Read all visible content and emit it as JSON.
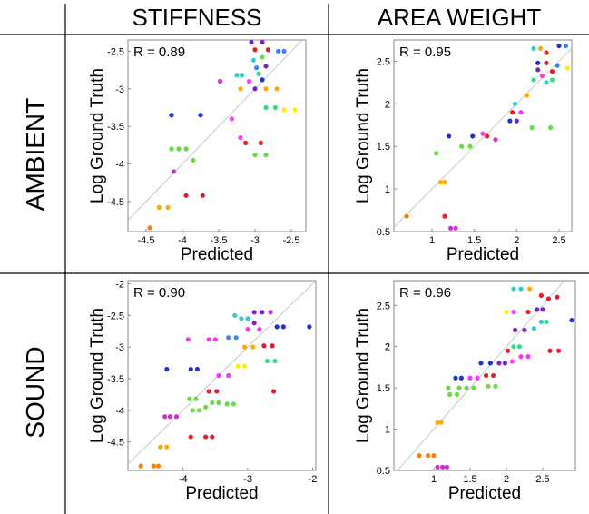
{
  "headers": {
    "columns": [
      "STIFFNESS",
      "AREA WEIGHT"
    ],
    "rows": [
      "AMBIENT",
      "SOUND"
    ]
  },
  "chart_data": [
    {
      "type": "scatter",
      "title": "",
      "row": "AMBIENT",
      "column": "STIFFNESS",
      "annotation": "R = 0.89",
      "xlabel": "Predicted",
      "ylabel": "Log Ground Truth",
      "xlim": [
        -4.75,
        -2.3
      ],
      "ylim": [
        -4.9,
        -2.35
      ],
      "xticks": [
        -4.5,
        -4,
        -3.5,
        -3,
        -2.5
      ],
      "yticks": [
        -2.5,
        -3,
        -3.5,
        -4,
        -4.5
      ],
      "grid": false,
      "points": [
        {
          "x": -4.45,
          "y": -4.85,
          "c": "#ff7f00"
        },
        {
          "x": -4.2,
          "y": -4.58,
          "c": "#ffaa00"
        },
        {
          "x": -4.32,
          "y": -4.58,
          "c": "#ffaa00"
        },
        {
          "x": -3.95,
          "y": -4.42,
          "c": "#e0202a"
        },
        {
          "x": -3.72,
          "y": -4.42,
          "c": "#e0202a"
        },
        {
          "x": -4.12,
          "y": -4.1,
          "c": "#cc33cc"
        },
        {
          "x": -4.05,
          "y": -3.8,
          "c": "#66dd44"
        },
        {
          "x": -4.15,
          "y": -3.8,
          "c": "#66dd44"
        },
        {
          "x": -3.95,
          "y": -3.8,
          "c": "#66dd44"
        },
        {
          "x": -3.85,
          "y": -3.95,
          "c": "#66dd44"
        },
        {
          "x": -4.15,
          "y": -3.35,
          "c": "#2233cc"
        },
        {
          "x": -3.75,
          "y": -3.35,
          "c": "#2233cc"
        },
        {
          "x": -3.32,
          "y": -3.4,
          "c": "#ff33ff"
        },
        {
          "x": -3.48,
          "y": -2.9,
          "c": "#cc33cc"
        },
        {
          "x": -3.2,
          "y": -3.0,
          "c": "#ffaa00"
        },
        {
          "x": -3.08,
          "y": -2.9,
          "c": "#ff33ff"
        },
        {
          "x": -3.13,
          "y": -3.72,
          "c": "#e0202a"
        },
        {
          "x": -2.92,
          "y": -3.72,
          "c": "#e0202a"
        },
        {
          "x": -3.2,
          "y": -3.65,
          "c": "#ff33ff"
        },
        {
          "x": -3.0,
          "y": -3.88,
          "c": "#66dd44"
        },
        {
          "x": -2.85,
          "y": -3.88,
          "c": "#66dd44"
        },
        {
          "x": -3.0,
          "y": -3.0,
          "c": "#7a22cc"
        },
        {
          "x": -2.85,
          "y": -3.0,
          "c": "#ffaa00"
        },
        {
          "x": -2.7,
          "y": -3.0,
          "c": "#ffaa00"
        },
        {
          "x": -2.85,
          "y": -3.25,
          "c": "#33dd88"
        },
        {
          "x": -2.72,
          "y": -3.25,
          "c": "#33dd88"
        },
        {
          "x": -2.6,
          "y": -3.28,
          "c": "#ffee00"
        },
        {
          "x": -2.45,
          "y": -3.28,
          "c": "#ffee00"
        },
        {
          "x": -2.9,
          "y": -2.88,
          "c": "#2233cc"
        },
        {
          "x": -2.95,
          "y": -2.8,
          "c": "#33dd88"
        },
        {
          "x": -3.02,
          "y": -2.62,
          "c": "#33cccc"
        },
        {
          "x": -2.98,
          "y": -2.72,
          "c": "#3388ff"
        },
        {
          "x": -2.85,
          "y": -2.7,
          "c": "#7a22cc"
        },
        {
          "x": -3.0,
          "y": -2.48,
          "c": "#e0202a"
        },
        {
          "x": -2.82,
          "y": -2.48,
          "c": "#e0202a"
        },
        {
          "x": -2.68,
          "y": -2.5,
          "c": "#3388ff"
        },
        {
          "x": -2.6,
          "y": -2.5,
          "c": "#3388ff"
        },
        {
          "x": -3.05,
          "y": -2.38,
          "c": "#7a22cc"
        },
        {
          "x": -2.9,
          "y": -2.38,
          "c": "#7a22cc"
        },
        {
          "x": -2.9,
          "y": -2.58,
          "c": "#66dd44"
        },
        {
          "x": -3.25,
          "y": -2.82,
          "c": "#33cccc"
        },
        {
          "x": -3.18,
          "y": -2.82,
          "c": "#33cccc"
        }
      ]
    },
    {
      "type": "scatter",
      "title": "",
      "row": "AMBIENT",
      "column": "AREA WEIGHT",
      "annotation": "R = 0.95",
      "xlabel": "Predicted",
      "ylabel": "Log Ground Truth",
      "xlim": [
        0.55,
        2.65
      ],
      "ylim": [
        0.5,
        2.75
      ],
      "xticks": [
        1,
        1.5,
        2,
        2.5
      ],
      "yticks": [
        0.5,
        1,
        1.5,
        2,
        2.5
      ],
      "grid": false,
      "points": [
        {
          "x": 0.7,
          "y": 0.68,
          "c": "#ff7f00"
        },
        {
          "x": 1.15,
          "y": 0.68,
          "c": "#e0202a"
        },
        {
          "x": 1.1,
          "y": 1.08,
          "c": "#ffaa00"
        },
        {
          "x": 1.15,
          "y": 1.08,
          "c": "#ffaa00"
        },
        {
          "x": 1.22,
          "y": 0.54,
          "c": "#cc33cc"
        },
        {
          "x": 1.28,
          "y": 0.54,
          "c": "#cc33cc"
        },
        {
          "x": 1.05,
          "y": 1.42,
          "c": "#66dd44"
        },
        {
          "x": 1.35,
          "y": 1.5,
          "c": "#66dd44"
        },
        {
          "x": 1.45,
          "y": 1.5,
          "c": "#66dd44"
        },
        {
          "x": 1.2,
          "y": 1.62,
          "c": "#2233cc"
        },
        {
          "x": 1.48,
          "y": 1.62,
          "c": "#2233cc"
        },
        {
          "x": 1.6,
          "y": 1.65,
          "c": "#ff33ff"
        },
        {
          "x": 1.65,
          "y": 1.62,
          "c": "#e0202a"
        },
        {
          "x": 1.75,
          "y": 1.58,
          "c": "#cc33cc"
        },
        {
          "x": 1.92,
          "y": 1.8,
          "c": "#2233cc"
        },
        {
          "x": 2.0,
          "y": 1.8,
          "c": "#7a22cc"
        },
        {
          "x": 1.95,
          "y": 1.9,
          "c": "#e0202a"
        },
        {
          "x": 2.05,
          "y": 1.9,
          "c": "#ff33ff"
        },
        {
          "x": 1.98,
          "y": 2.0,
          "c": "#33cccc"
        },
        {
          "x": 2.18,
          "y": 1.72,
          "c": "#66dd44"
        },
        {
          "x": 2.4,
          "y": 1.72,
          "c": "#66dd44"
        },
        {
          "x": 2.12,
          "y": 2.1,
          "c": "#ffaa00"
        },
        {
          "x": 2.2,
          "y": 2.28,
          "c": "#33dd88"
        },
        {
          "x": 2.25,
          "y": 2.4,
          "c": "#7a22cc"
        },
        {
          "x": 2.3,
          "y": 2.33,
          "c": "#ff33ff"
        },
        {
          "x": 2.35,
          "y": 2.25,
          "c": "#33cccc"
        },
        {
          "x": 2.42,
          "y": 2.38,
          "c": "#e0202a"
        },
        {
          "x": 2.48,
          "y": 2.45,
          "c": "#3388ff"
        },
        {
          "x": 2.35,
          "y": 2.48,
          "c": "#e0202a"
        },
        {
          "x": 2.25,
          "y": 2.48,
          "c": "#2233cc"
        },
        {
          "x": 2.2,
          "y": 2.65,
          "c": "#33cccc"
        },
        {
          "x": 2.28,
          "y": 2.65,
          "c": "#ffaa00"
        },
        {
          "x": 2.35,
          "y": 2.6,
          "c": "#e0202a"
        },
        {
          "x": 2.5,
          "y": 2.68,
          "c": "#2233cc"
        },
        {
          "x": 2.58,
          "y": 2.68,
          "c": "#3388ff"
        },
        {
          "x": 2.6,
          "y": 2.42,
          "c": "#ffee00"
        },
        {
          "x": 2.42,
          "y": 2.28,
          "c": "#33dd88"
        }
      ]
    },
    {
      "type": "scatter",
      "title": "",
      "row": "SOUND",
      "column": "STIFFNESS",
      "annotation": "R = 0.90",
      "xlabel": "Predicted",
      "ylabel": "Log Ground Truth",
      "xlim": [
        -4.85,
        -1.95
      ],
      "ylim": [
        -4.95,
        -1.95
      ],
      "xticks": [
        -4,
        -3,
        -2
      ],
      "yticks": [
        -2,
        -2.5,
        -3,
        -3.5,
        -4,
        -4.5
      ],
      "grid": false,
      "points": [
        {
          "x": -4.65,
          "y": -4.88,
          "c": "#ff7f00"
        },
        {
          "x": -4.45,
          "y": -4.88,
          "c": "#ff7f00"
        },
        {
          "x": -4.38,
          "y": -4.88,
          "c": "#ff7f00"
        },
        {
          "x": -4.35,
          "y": -4.58,
          "c": "#ffaa00"
        },
        {
          "x": -4.25,
          "y": -4.58,
          "c": "#ffaa00"
        },
        {
          "x": -3.88,
          "y": -4.42,
          "c": "#e0202a"
        },
        {
          "x": -3.65,
          "y": -4.42,
          "c": "#e0202a"
        },
        {
          "x": -3.55,
          "y": -4.42,
          "c": "#e0202a"
        },
        {
          "x": -4.28,
          "y": -4.1,
          "c": "#cc33cc"
        },
        {
          "x": -4.2,
          "y": -4.1,
          "c": "#cc33cc"
        },
        {
          "x": -4.1,
          "y": -4.1,
          "c": "#cc33cc"
        },
        {
          "x": -3.85,
          "y": -4.0,
          "c": "#66dd44"
        },
        {
          "x": -3.75,
          "y": -4.0,
          "c": "#66dd44"
        },
        {
          "x": -3.65,
          "y": -3.95,
          "c": "#66dd44"
        },
        {
          "x": -3.9,
          "y": -3.82,
          "c": "#66dd44"
        },
        {
          "x": -3.8,
          "y": -3.82,
          "c": "#66dd44"
        },
        {
          "x": -3.55,
          "y": -3.88,
          "c": "#66dd44"
        },
        {
          "x": -3.45,
          "y": -3.88,
          "c": "#66dd44"
        },
        {
          "x": -3.32,
          "y": -3.9,
          "c": "#66dd44"
        },
        {
          "x": -3.22,
          "y": -3.9,
          "c": "#66dd44"
        },
        {
          "x": -3.6,
          "y": -3.7,
          "c": "#e0202a"
        },
        {
          "x": -3.48,
          "y": -3.7,
          "c": "#e0202a"
        },
        {
          "x": -4.25,
          "y": -3.35,
          "c": "#2233cc"
        },
        {
          "x": -3.88,
          "y": -3.35,
          "c": "#2233cc"
        },
        {
          "x": -3.78,
          "y": -3.35,
          "c": "#2233cc"
        },
        {
          "x": -3.45,
          "y": -3.45,
          "c": "#ff33ff"
        },
        {
          "x": -3.3,
          "y": -3.45,
          "c": "#ff33ff"
        },
        {
          "x": -3.15,
          "y": -3.3,
          "c": "#ffee00"
        },
        {
          "x": -3.05,
          "y": -3.3,
          "c": "#ffee00"
        },
        {
          "x": -3.92,
          "y": -2.88,
          "c": "#ff33ff"
        },
        {
          "x": -3.6,
          "y": -2.88,
          "c": "#ff33ff"
        },
        {
          "x": -3.5,
          "y": -2.88,
          "c": "#ff33ff"
        },
        {
          "x": -3.3,
          "y": -2.85,
          "c": "#3388ff"
        },
        {
          "x": -3.18,
          "y": -2.85,
          "c": "#3388ff"
        },
        {
          "x": -3.05,
          "y": -3.0,
          "c": "#ffaa00"
        },
        {
          "x": -2.92,
          "y": -3.0,
          "c": "#ffaa00"
        },
        {
          "x": -2.75,
          "y": -2.98,
          "c": "#e0202a"
        },
        {
          "x": -2.62,
          "y": -2.98,
          "c": "#e0202a"
        },
        {
          "x": -2.7,
          "y": -3.22,
          "c": "#33dd88"
        },
        {
          "x": -2.58,
          "y": -3.22,
          "c": "#33dd88"
        },
        {
          "x": -2.6,
          "y": -3.7,
          "c": "#e0202a"
        },
        {
          "x": -2.55,
          "y": -2.68,
          "c": "#2233cc"
        },
        {
          "x": -2.45,
          "y": -2.68,
          "c": "#2233cc"
        },
        {
          "x": -2.05,
          "y": -2.68,
          "c": "#2233cc"
        },
        {
          "x": -3.2,
          "y": -2.5,
          "c": "#33cccc"
        },
        {
          "x": -3.1,
          "y": -2.55,
          "c": "#33cccc"
        },
        {
          "x": -3.0,
          "y": -2.55,
          "c": "#33cccc"
        },
        {
          "x": -2.9,
          "y": -2.45,
          "c": "#7a22cc"
        },
        {
          "x": -2.78,
          "y": -2.45,
          "c": "#7a22cc"
        },
        {
          "x": -2.65,
          "y": -2.45,
          "c": "#cc33cc"
        },
        {
          "x": -2.9,
          "y": -2.62,
          "c": "#7a22cc"
        },
        {
          "x": -3.0,
          "y": -2.72,
          "c": "#ff33ff"
        },
        {
          "x": -2.82,
          "y": -2.72,
          "c": "#ff33ff"
        }
      ]
    },
    {
      "type": "scatter",
      "title": "",
      "row": "SOUND",
      "column": "AREA WEIGHT",
      "annotation": "R = 0.96",
      "xlabel": "Predicted",
      "ylabel": "Log Ground Truth",
      "xlim": [
        0.45,
        2.95
      ],
      "ylim": [
        0.5,
        2.8
      ],
      "xticks": [
        1,
        1.5,
        2,
        2.5
      ],
      "yticks": [
        0.5,
        1,
        1.5,
        2,
        2.5
      ],
      "grid": false,
      "points": [
        {
          "x": 0.8,
          "y": 0.68,
          "c": "#ff7f00"
        },
        {
          "x": 0.92,
          "y": 0.68,
          "c": "#ff7f00"
        },
        {
          "x": 1.0,
          "y": 0.68,
          "c": "#ff7f00"
        },
        {
          "x": 1.05,
          "y": 0.54,
          "c": "#cc33cc"
        },
        {
          "x": 1.12,
          "y": 0.54,
          "c": "#cc33cc"
        },
        {
          "x": 1.18,
          "y": 0.54,
          "c": "#cc33cc"
        },
        {
          "x": 1.05,
          "y": 1.08,
          "c": "#ffaa00"
        },
        {
          "x": 1.1,
          "y": 1.08,
          "c": "#ffaa00"
        },
        {
          "x": 1.22,
          "y": 1.42,
          "c": "#66dd44"
        },
        {
          "x": 1.32,
          "y": 1.42,
          "c": "#66dd44"
        },
        {
          "x": 1.2,
          "y": 1.5,
          "c": "#66dd44"
        },
        {
          "x": 1.35,
          "y": 1.5,
          "c": "#66dd44"
        },
        {
          "x": 1.45,
          "y": 1.5,
          "c": "#66dd44"
        },
        {
          "x": 1.55,
          "y": 1.5,
          "c": "#66dd44"
        },
        {
          "x": 1.3,
          "y": 1.62,
          "c": "#2233cc"
        },
        {
          "x": 1.38,
          "y": 1.62,
          "c": "#2233cc"
        },
        {
          "x": 1.5,
          "y": 1.62,
          "c": "#ff33ff"
        },
        {
          "x": 1.6,
          "y": 1.62,
          "c": "#ff33ff"
        },
        {
          "x": 1.75,
          "y": 1.52,
          "c": "#66dd44"
        },
        {
          "x": 1.85,
          "y": 1.52,
          "c": "#66dd44"
        },
        {
          "x": 1.72,
          "y": 1.65,
          "c": "#e0202a"
        },
        {
          "x": 1.82,
          "y": 1.65,
          "c": "#e0202a"
        },
        {
          "x": 1.65,
          "y": 1.8,
          "c": "#2233cc"
        },
        {
          "x": 1.78,
          "y": 1.8,
          "c": "#2233cc"
        },
        {
          "x": 1.9,
          "y": 1.8,
          "c": "#7a22cc"
        },
        {
          "x": 1.98,
          "y": 1.8,
          "c": "#7a22cc"
        },
        {
          "x": 2.08,
          "y": 1.82,
          "c": "#ff33ff"
        },
        {
          "x": 2.2,
          "y": 1.88,
          "c": "#ff33ff"
        },
        {
          "x": 2.3,
          "y": 1.88,
          "c": "#ff33ff"
        },
        {
          "x": 2.02,
          "y": 1.95,
          "c": "#e0202a"
        },
        {
          "x": 2.1,
          "y": 2.0,
          "c": "#33dd88"
        },
        {
          "x": 2.18,
          "y": 2.0,
          "c": "#33dd88"
        },
        {
          "x": 2.12,
          "y": 2.2,
          "c": "#7a22cc"
        },
        {
          "x": 2.25,
          "y": 2.2,
          "c": "#7a22cc"
        },
        {
          "x": 2.38,
          "y": 2.22,
          "c": "#33cccc"
        },
        {
          "x": 2.48,
          "y": 2.3,
          "c": "#33cccc"
        },
        {
          "x": 2.55,
          "y": 2.3,
          "c": "#33dd88"
        },
        {
          "x": 2.0,
          "y": 2.42,
          "c": "#ffee00"
        },
        {
          "x": 2.1,
          "y": 2.42,
          "c": "#ff33ff"
        },
        {
          "x": 2.3,
          "y": 2.42,
          "c": "#e0202a"
        },
        {
          "x": 2.42,
          "y": 2.45,
          "c": "#7a22cc"
        },
        {
          "x": 2.5,
          "y": 2.45,
          "c": "#7a22cc"
        },
        {
          "x": 2.1,
          "y": 2.7,
          "c": "#33cccc"
        },
        {
          "x": 2.2,
          "y": 2.7,
          "c": "#33cccc"
        },
        {
          "x": 2.32,
          "y": 2.7,
          "c": "#ffaa00"
        },
        {
          "x": 2.48,
          "y": 2.62,
          "c": "#e0202a"
        },
        {
          "x": 2.58,
          "y": 2.58,
          "c": "#e0202a"
        },
        {
          "x": 2.7,
          "y": 2.6,
          "c": "#e0202a"
        },
        {
          "x": 2.6,
          "y": 1.95,
          "c": "#e0202a"
        },
        {
          "x": 2.72,
          "y": 1.95,
          "c": "#e0202a"
        },
        {
          "x": 2.9,
          "y": 2.32,
          "c": "#2233cc"
        }
      ]
    }
  ]
}
